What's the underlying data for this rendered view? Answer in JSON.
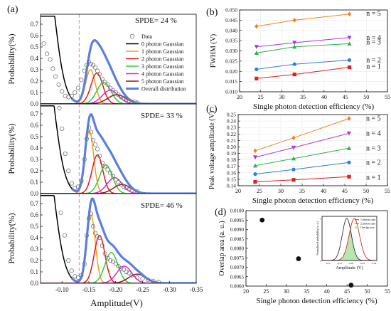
{
  "panel_labels": {
    "a": "(a)",
    "b": "(b)",
    "c": "(c)",
    "d": "(d)"
  },
  "colors": {
    "n0": "#000000",
    "n1": "#f0a020",
    "n2": "#e01818",
    "n3": "#33cc33",
    "n4": "#e020e0",
    "n5": "#8b1a1a",
    "overall": "#5b7fe0",
    "threshold": "#e07ad0",
    "b1": "#e02020",
    "b2": "#2a82d0",
    "b3": "#2bb24a",
    "b4": "#a43cd6",
    "b5": "#f08020"
  },
  "chart_data": [
    {
      "id": "a",
      "type": "line",
      "xlabel": "Amplitude(V)",
      "ylabel": "Probability(%)",
      "xlim": [
        -0.06,
        -0.35
      ],
      "ylim": [
        0,
        0.75
      ],
      "x_ticks": [
        "-0.10",
        "-0.15",
        "-0.20",
        "-0.25",
        "-0.30",
        "-0.35"
      ],
      "y_ticks": [
        "0.0",
        "0.1",
        "0.2",
        "0.3",
        "0.4",
        "0.5",
        "0.6",
        "0.7"
      ],
      "legend": [
        "Data",
        "0 photon Gaussian",
        "1 photon Gaussian",
        "2 photon Gaussian",
        "3 photon Gaussian",
        "4 photon Gaussian",
        "5 photon Gaussian",
        "Overall distribution"
      ],
      "threshold_x": -0.132,
      "subplots": [
        {
          "annotation": "SPDE= 24 %",
          "gaussians": [
            {
              "name": "0 photon Gaussian",
              "mu": -0.06,
              "sigma": 0.022,
              "amp": 1.6
            },
            {
              "name": "1 photon Gaussian",
              "mu": -0.153,
              "sigma": 0.009,
              "amp": 0.3
            },
            {
              "name": "2 photon Gaussian",
              "mu": -0.165,
              "sigma": 0.011,
              "amp": 0.27
            },
            {
              "name": "3 photon Gaussian",
              "mu": -0.178,
              "sigma": 0.013,
              "amp": 0.19
            },
            {
              "name": "4 photon Gaussian",
              "mu": -0.19,
              "sigma": 0.015,
              "amp": 0.12
            },
            {
              "name": "5 photon Gaussian",
              "mu": -0.202,
              "sigma": 0.017,
              "amp": 0.08
            }
          ],
          "data_x": [
            -0.066,
            -0.072,
            -0.078,
            -0.083,
            -0.088,
            -0.094,
            -0.1,
            -0.106,
            -0.112,
            -0.118,
            -0.124,
            -0.13,
            -0.136,
            -0.142,
            -0.146,
            -0.15,
            -0.154,
            -0.158,
            -0.162,
            -0.166,
            -0.17,
            -0.175,
            -0.18,
            -0.185,
            -0.19,
            -0.195,
            -0.2,
            -0.205,
            -0.21,
            -0.215,
            -0.22,
            -0.225,
            -0.23,
            -0.235,
            -0.24
          ],
          "data_y": [
            0.53,
            0.44,
            0.39,
            0.31,
            0.24,
            0.17,
            0.11,
            0.07,
            0.06,
            0.07,
            0.1,
            0.14,
            0.21,
            0.29,
            0.34,
            0.37,
            0.35,
            0.34,
            0.32,
            0.29,
            0.26,
            0.22,
            0.19,
            0.17,
            0.14,
            0.12,
            0.1,
            0.08,
            0.06,
            0.05,
            0.04,
            0.03,
            0.02,
            0.02,
            0.01
          ]
        },
        {
          "annotation": "SPDE= 33 %",
          "gaussians": [
            {
              "name": "0 photon Gaussian",
              "mu": -0.06,
              "sigma": 0.022,
              "amp": 1.5
            },
            {
              "name": "1 photon Gaussian",
              "mu": -0.151,
              "sigma": 0.008,
              "amp": 0.55
            },
            {
              "name": "2 photon Gaussian",
              "mu": -0.166,
              "sigma": 0.01,
              "amp": 0.34
            },
            {
              "name": "3 photon Gaussian",
              "mu": -0.182,
              "sigma": 0.012,
              "amp": 0.25
            },
            {
              "name": "4 photon Gaussian",
              "mu": -0.198,
              "sigma": 0.014,
              "amp": 0.14
            },
            {
              "name": "5 photon Gaussian",
              "mu": -0.212,
              "sigma": 0.016,
              "amp": 0.08
            }
          ],
          "data_x": [
            -0.095,
            -0.1,
            -0.106,
            -0.112,
            -0.118,
            -0.124,
            -0.13,
            -0.136,
            -0.142,
            -0.146,
            -0.15,
            -0.154,
            -0.158,
            -0.162,
            -0.166,
            -0.17,
            -0.175,
            -0.18,
            -0.185,
            -0.19,
            -0.195,
            -0.2,
            -0.205,
            -0.21,
            -0.215,
            -0.22,
            -0.225,
            -0.23,
            -0.24
          ],
          "data_y": [
            0.75,
            0.57,
            0.35,
            0.2,
            0.09,
            0.05,
            0.06,
            0.11,
            0.3,
            0.48,
            0.58,
            0.54,
            0.47,
            0.43,
            0.39,
            0.33,
            0.27,
            0.24,
            0.21,
            0.18,
            0.15,
            0.12,
            0.1,
            0.08,
            0.06,
            0.05,
            0.04,
            0.03,
            0.02
          ]
        },
        {
          "annotation": "SPDE= 46 %",
          "gaussians": [
            {
              "name": "0 photon Gaussian",
              "mu": -0.06,
              "sigma": 0.022,
              "amp": 1.5
            },
            {
              "name": "1 photon Gaussian",
              "mu": -0.154,
              "sigma": 0.008,
              "amp": 0.6
            },
            {
              "name": "2 photon Gaussian",
              "mu": -0.17,
              "sigma": 0.01,
              "amp": 0.42
            },
            {
              "name": "3 photon Gaussian",
              "mu": -0.192,
              "sigma": 0.012,
              "amp": 0.27
            },
            {
              "name": "4 photon Gaussian",
              "mu": -0.216,
              "sigma": 0.014,
              "amp": 0.15
            },
            {
              "name": "5 photon Gaussian",
              "mu": -0.24,
              "sigma": 0.016,
              "amp": 0.08
            }
          ],
          "data_x": [
            -0.098,
            -0.105,
            -0.112,
            -0.118,
            -0.124,
            -0.13,
            -0.136,
            -0.142,
            -0.146,
            -0.15,
            -0.154,
            -0.158,
            -0.162,
            -0.166,
            -0.17,
            -0.175,
            -0.18,
            -0.185,
            -0.19,
            -0.195,
            -0.2,
            -0.205,
            -0.21,
            -0.215,
            -0.22,
            -0.225,
            -0.23,
            -0.24,
            -0.25,
            -0.26,
            -0.27,
            -0.28
          ],
          "data_y": [
            0.62,
            0.42,
            0.2,
            0.11,
            0.06,
            0.05,
            0.07,
            0.17,
            0.42,
            0.57,
            0.61,
            0.5,
            0.44,
            0.41,
            0.4,
            0.33,
            0.26,
            0.22,
            0.2,
            0.19,
            0.17,
            0.15,
            0.13,
            0.12,
            0.1,
            0.09,
            0.07,
            0.05,
            0.04,
            0.03,
            0.02,
            0.01
          ]
        }
      ]
    },
    {
      "id": "b",
      "type": "line",
      "xlabel": "Single photon detection efficiency (%)",
      "ylabel": "FWHM (V)",
      "xlim": [
        20,
        55
      ],
      "ylim": [
        0.01,
        0.05
      ],
      "x_ticks": [
        "20",
        "25",
        "30",
        "35",
        "40",
        "45",
        "50",
        "55"
      ],
      "y_ticks": [
        "0.010",
        "0.015",
        "0.020",
        "0.025",
        "0.030",
        "0.035",
        "0.040",
        "0.045",
        "0.050"
      ],
      "x": [
        24,
        33,
        46
      ],
      "series": [
        {
          "name": "n = 1",
          "values": [
            0.0165,
            0.0185,
            0.022
          ]
        },
        {
          "name": "n = 2",
          "values": [
            0.021,
            0.0235,
            0.0255
          ]
        },
        {
          "name": "n = 3",
          "values": [
            0.029,
            0.032,
            0.0335
          ]
        },
        {
          "name": "n = 4",
          "values": [
            0.032,
            0.034,
            0.0365
          ]
        },
        {
          "name": "n = 5",
          "values": [
            0.042,
            0.045,
            0.048
          ]
        }
      ]
    },
    {
      "id": "c",
      "type": "line",
      "xlabel": "Single photon detection efficiency (%)",
      "ylabel": "Peak voltage amplitude (V)",
      "xlim": [
        20,
        55
      ],
      "ylim": [
        0.14,
        0.25
      ],
      "x_ticks": [
        "20",
        "25",
        "30",
        "35",
        "40",
        "45",
        "50",
        "55"
      ],
      "y_ticks": [
        "0.14",
        "0.15",
        "0.16",
        "0.17",
        "0.18",
        "0.19",
        "0.20",
        "0.21",
        "0.22",
        "0.23",
        "0.24",
        "0.25"
      ],
      "x": [
        24,
        33,
        46
      ],
      "series": [
        {
          "name": "n = 1",
          "values": [
            0.146,
            0.149,
            0.154
          ]
        },
        {
          "name": "n = 2",
          "values": [
            0.158,
            0.165,
            0.176
          ]
        },
        {
          "name": "n = 3",
          "values": [
            0.171,
            0.182,
            0.198
          ]
        },
        {
          "name": "n = 4",
          "values": [
            0.184,
            0.199,
            0.221
          ]
        },
        {
          "name": "n = 5",
          "values": [
            0.194,
            0.214,
            0.244
          ]
        }
      ]
    },
    {
      "id": "d",
      "type": "scatter",
      "xlabel": "Single photon detection efficiency (%)",
      "ylabel": "Overlap area (a. u.)",
      "xlim": [
        20,
        55
      ],
      "ylim": [
        0.006,
        0.01
      ],
      "x_ticks": [
        "20",
        "25",
        "30",
        "35",
        "40",
        "45",
        "50",
        "55"
      ],
      "y_ticks": [
        "0.0060",
        "0.0065",
        "0.0070",
        "0.0075",
        "0.0080",
        "0.0085",
        "0.0090",
        "0.0095",
        "0.0100"
      ],
      "x": [
        24,
        33,
        46
      ],
      "values": [
        0.0095,
        0.00745,
        0.00605
      ],
      "inset": {
        "xlabel": "Amplitude (V)",
        "ylabel": "Normalized probability (a. u.)",
        "legend": [
          "1 photon state",
          "2 photon state",
          "Overlap area"
        ],
        "x_ticks": [
          "-0.12",
          "-0.14",
          "-0.16",
          "-0.18",
          "-0.20"
        ],
        "y_ticks": [
          "0",
          "1"
        ],
        "xlim": [
          -0.11,
          -0.205
        ],
        "ylim": [
          0,
          1.05
        ],
        "curves": [
          {
            "name": "1 photon state",
            "mu": -0.153,
            "sigma": 0.008
          },
          {
            "name": "2 photon state",
            "mu": -0.166,
            "sigma": 0.009
          }
        ]
      }
    }
  ]
}
